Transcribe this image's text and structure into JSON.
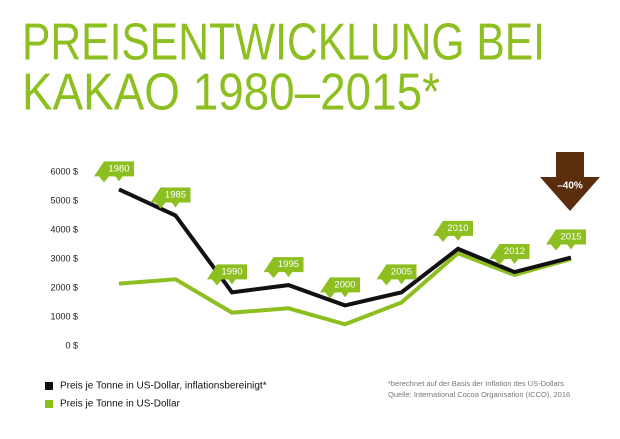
{
  "chart_data": {
    "type": "line",
    "title": [
      "PREISENTWICKLUNG BEI",
      "KAKAO 1980–2015*"
    ],
    "categories": [
      "1980",
      "1985",
      "1990",
      "1995",
      "2000",
      "2005",
      "2010",
      "2012",
      "2015"
    ],
    "series": [
      {
        "name": "Preis je Tonne in US-Dollar, inflationsbereinigt*",
        "color": "#111111",
        "values": [
          5400,
          4500,
          1850,
          2100,
          1400,
          1850,
          3350,
          2550,
          3050
        ]
      },
      {
        "name": "Preis je Tonne in US-Dollar",
        "color": "#8cbf1f",
        "values": [
          2150,
          2300,
          1150,
          1300,
          750,
          1500,
          3200,
          2450,
          3000
        ]
      }
    ],
    "ylim": [
      0,
      6000
    ],
    "yticks": [
      {
        "value": 0,
        "label": "0 $"
      },
      {
        "value": 1000,
        "label": "1000 $"
      },
      {
        "value": 2000,
        "label": "2000 $"
      },
      {
        "value": 3000,
        "label": "3000 $"
      },
      {
        "value": 4000,
        "label": "4000 $"
      },
      {
        "value": 5000,
        "label": "5000 $"
      },
      {
        "value": 6000,
        "label": "6000 $"
      }
    ],
    "annotation": "–40%",
    "footnote": [
      "*berechnet auf der Basis der Inflation des US-Dollars",
      "Quelle: International Cocoa Organisation (ICCO), 2016"
    ]
  }
}
